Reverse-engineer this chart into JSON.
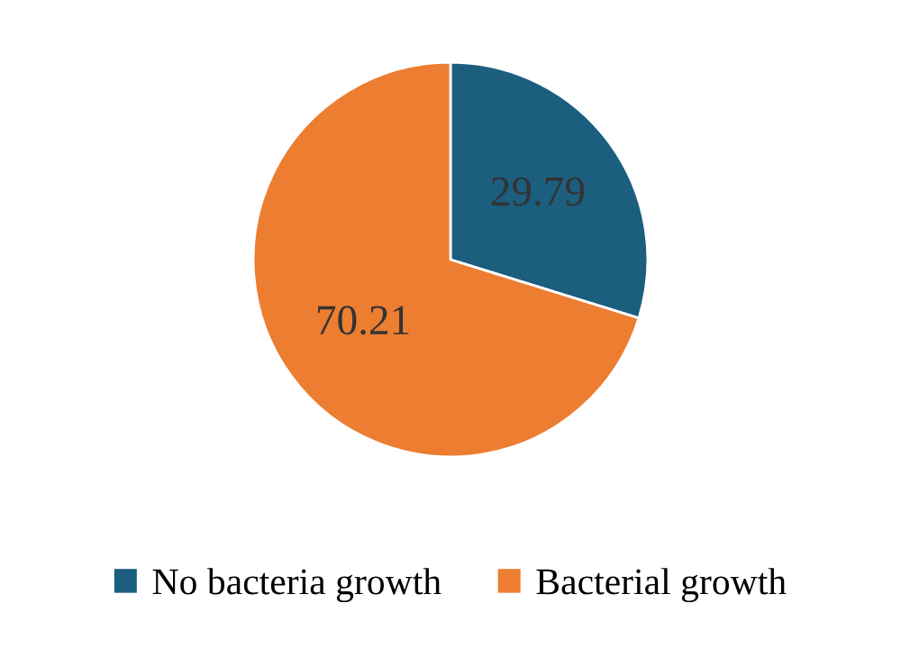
{
  "chart_data": {
    "type": "pie",
    "categories": [
      "No bacteria growth",
      "Bacterial growth"
    ],
    "values": [
      29.79,
      70.21
    ],
    "colors": [
      "#1b5e7e",
      "#ed7d31"
    ],
    "data_labels": true,
    "legend": "bottom"
  }
}
